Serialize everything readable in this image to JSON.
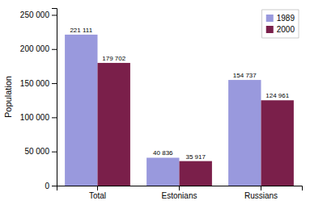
{
  "chart_data": {
    "type": "bar",
    "ylabel": "Population",
    "categories": [
      "Total",
      "Estonians",
      "Russians"
    ],
    "series": [
      {
        "name": "1989",
        "color": "#9999dd",
        "values": [
          221111,
          40836,
          154737
        ],
        "value_labels": [
          "221 111",
          "40 836",
          "154 737"
        ]
      },
      {
        "name": "2000",
        "color": "#7a1f4a",
        "values": [
          179702,
          35917,
          124961
        ],
        "value_labels": [
          "179 702",
          "35 917",
          "124 961"
        ]
      }
    ],
    "ylim": [
      0,
      260000
    ],
    "yticks": [
      0,
      {
        "value": 50000,
        "label": "50 000"
      },
      {
        "value": 100000,
        "label": "100 000"
      },
      {
        "value": 150000,
        "label": "150 000"
      },
      {
        "value": 200000,
        "label": "200 000"
      },
      {
        "value": 250000,
        "label": "250 000"
      }
    ],
    "data_labels": true,
    "grid": false,
    "legend": "upper right"
  }
}
